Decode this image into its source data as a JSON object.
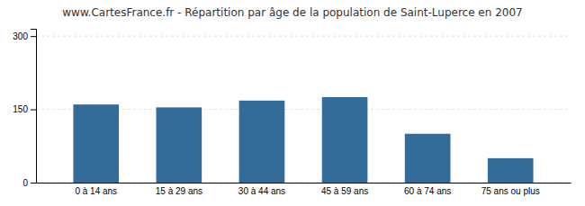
{
  "chart_data": {
    "type": "bar",
    "title": "www.CartesFrance.fr - Répartition par âge de la population de Saint-Luperce en 2007",
    "categories": [
      "0 à 14 ans",
      "15 à 29 ans",
      "30 à 44 ans",
      "45 à 59 ans",
      "60 à 74 ans",
      "75 ans ou plus"
    ],
    "values": [
      160,
      154,
      168,
      175,
      100,
      50
    ],
    "color": "#336b99",
    "ylim": [
      0,
      315
    ],
    "yticks": [
      0,
      150,
      300
    ],
    "grid": true
  }
}
